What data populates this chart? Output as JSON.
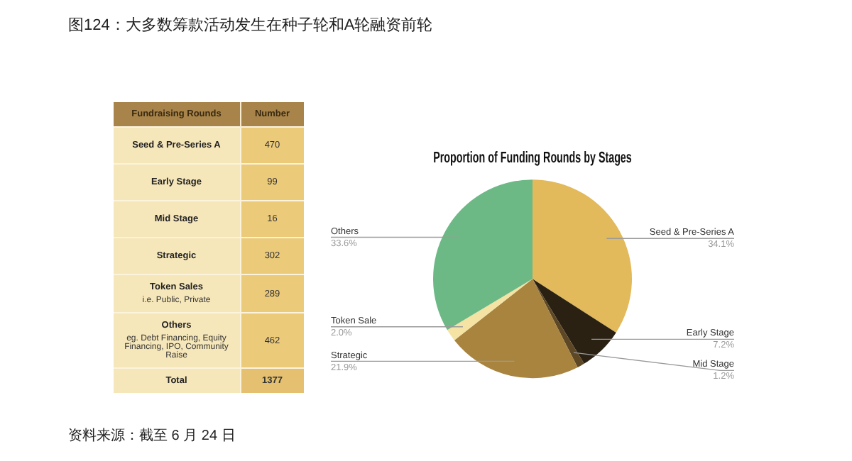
{
  "chart_data": [
    {
      "type": "other",
      "title": "图124：大多数筹款活动发生在种子轮和A轮融资前轮",
      "xlabel": "Fundraising Rounds",
      "ylabel": "Number",
      "categories": [
        "Seed & Pre-Series A",
        "Early Stage",
        "Mid Stage",
        "Strategic",
        "Token Sales",
        "Others",
        "Total"
      ],
      "values": [
        470,
        99,
        16,
        302,
        289,
        462,
        1377
      ],
      "data_labels": true,
      "annotations": [
        {
          "text": "i.e. Public, Private",
          "x": "Token Sales"
        },
        {
          "text": "eg. Debt Financing, Equity Financing, IPO, Community Raise",
          "x": "Others"
        },
        "资料来源：截至 6 月 24 日"
      ]
    },
    {
      "type": "pie",
      "title": "Proportion of Funding Rounds by Stages",
      "categories": [
        "Seed & Pre-Series A",
        "Early Stage",
        "Mid Stage",
        "Strategic",
        "Token Sale",
        "Others"
      ],
      "values": [
        34.1,
        7.2,
        1.2,
        21.9,
        2.0,
        33.6
      ],
      "value_labels": [
        "34.1%",
        "7.2%",
        "1.2%",
        "21.9%",
        "2.0%",
        "33.6%"
      ],
      "colors": [
        "#e2b95b",
        "#2a2113",
        "#5e4724",
        "#a8843f",
        "#f4e3a3",
        "#6cb985"
      ],
      "legend": false
    }
  ]
}
